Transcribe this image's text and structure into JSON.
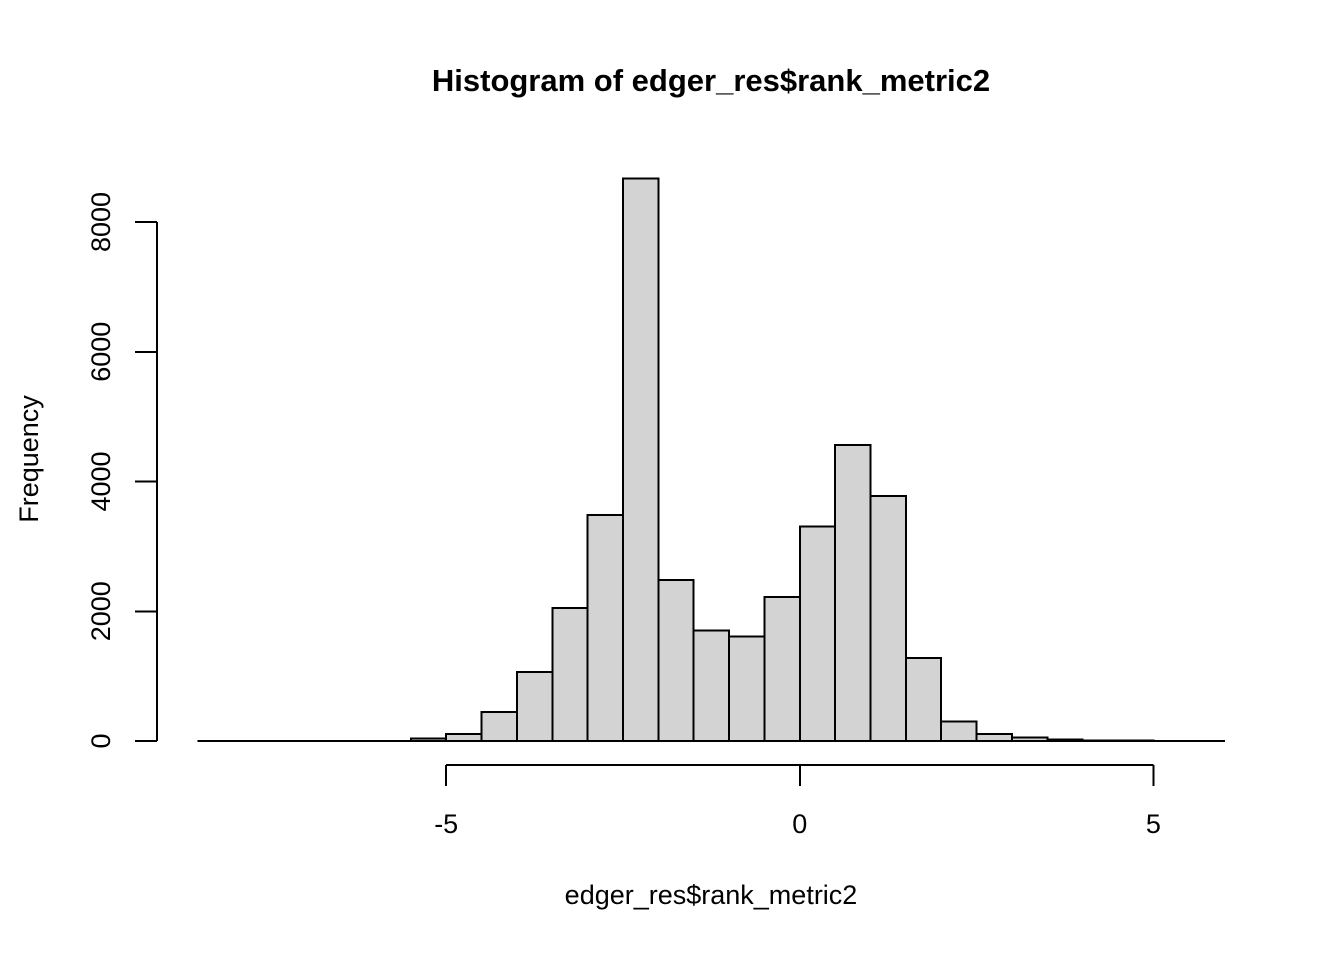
{
  "chart_data": {
    "type": "bar",
    "subtype": "histogram",
    "title": "Histogram of edger_res$rank_metric2",
    "xlabel": "edger_res$rank_metric2",
    "ylabel": "Frequency",
    "bin_start": -8.5,
    "bin_width": 0.5,
    "bins": [
      {
        "from": -8.5,
        "to": -8.0,
        "count": 1
      },
      {
        "from": -8.0,
        "to": -7.5,
        "count": 1
      },
      {
        "from": -7.5,
        "to": -7.0,
        "count": 1
      },
      {
        "from": -7.0,
        "to": -6.5,
        "count": 1
      },
      {
        "from": -6.5,
        "to": -6.0,
        "count": 2
      },
      {
        "from": -6.0,
        "to": -5.5,
        "count": 2
      },
      {
        "from": -5.5,
        "to": -5.0,
        "count": 40
      },
      {
        "from": -5.0,
        "to": -4.5,
        "count": 110
      },
      {
        "from": -4.5,
        "to": -4.0,
        "count": 450
      },
      {
        "from": -4.0,
        "to": -3.5,
        "count": 1060
      },
      {
        "from": -3.5,
        "to": -3.0,
        "count": 2050
      },
      {
        "from": -3.0,
        "to": -2.5,
        "count": 3480
      },
      {
        "from": -2.5,
        "to": -2.0,
        "count": 8670
      },
      {
        "from": -2.0,
        "to": -1.5,
        "count": 2480
      },
      {
        "from": -1.5,
        "to": -1.0,
        "count": 1700
      },
      {
        "from": -1.0,
        "to": -0.5,
        "count": 1610
      },
      {
        "from": -0.5,
        "to": 0.0,
        "count": 2220
      },
      {
        "from": 0.0,
        "to": 0.5,
        "count": 3310
      },
      {
        "from": 0.5,
        "to": 1.0,
        "count": 4560
      },
      {
        "from": 1.0,
        "to": 1.5,
        "count": 3780
      },
      {
        "from": 1.5,
        "to": 2.0,
        "count": 1280
      },
      {
        "from": 2.0,
        "to": 2.5,
        "count": 300
      },
      {
        "from": 2.5,
        "to": 3.0,
        "count": 110
      },
      {
        "from": 3.0,
        "to": 3.5,
        "count": 55
      },
      {
        "from": 3.5,
        "to": 4.0,
        "count": 25
      },
      {
        "from": 4.0,
        "to": 4.5,
        "count": 10
      },
      {
        "from": 4.5,
        "to": 5.0,
        "count": 6
      },
      {
        "from": 5.0,
        "to": 5.5,
        "count": 3
      },
      {
        "from": 5.5,
        "to": 6.0,
        "count": 2
      }
    ],
    "x_ticks": [
      {
        "value": -5,
        "label": "-5"
      },
      {
        "value": 0,
        "label": "0"
      },
      {
        "value": 5,
        "label": "5"
      }
    ],
    "y_ticks": [
      {
        "value": 0,
        "label": "0"
      },
      {
        "value": 2000,
        "label": "2000"
      },
      {
        "value": 4000,
        "label": "4000"
      },
      {
        "value": 6000,
        "label": "6000"
      },
      {
        "value": 8000,
        "label": "8000"
      }
    ],
    "xlim": [
      -8.5,
      6.0
    ],
    "ylim": [
      0,
      8000
    ],
    "grid": false,
    "legend": null,
    "colors": {
      "bar_fill": "#d3d3d3",
      "bar_stroke": "#000000",
      "axis": "#000000",
      "background": "#ffffff"
    }
  }
}
